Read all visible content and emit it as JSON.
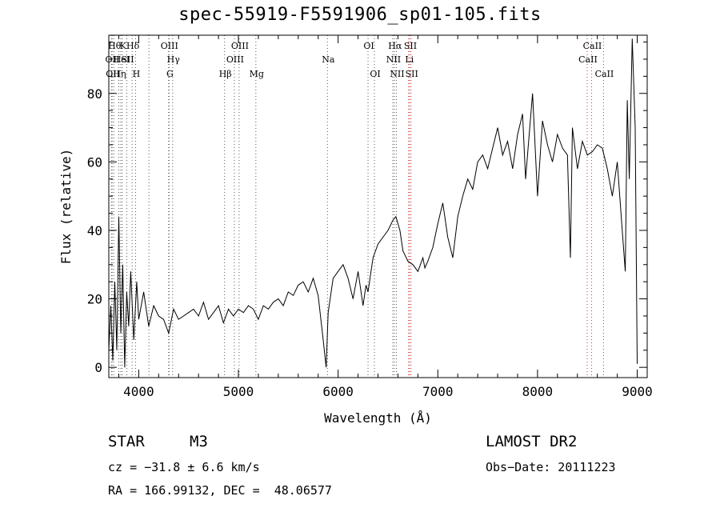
{
  "chart_data": {
    "type": "line",
    "title": "spec-55919-F5591906_sp01-105.fits",
    "xlabel": "Wavelength (Å)",
    "ylabel": "Flux (relative)",
    "xlim": [
      3700,
      9100
    ],
    "ylim": [
      -3,
      97
    ],
    "xticks": [
      4000,
      5000,
      6000,
      7000,
      8000,
      9000
    ],
    "yticks": [
      0,
      20,
      40,
      60,
      80
    ],
    "grid": false,
    "legend": "none",
    "series": [
      {
        "x": [
          3700,
          3720,
          3740,
          3760,
          3780,
          3800,
          3820,
          3840,
          3860,
          3880,
          3900,
          3920,
          3950,
          3980,
          4000,
          4050,
          4100,
          4150,
          4200,
          4250,
          4300,
          4350,
          4400,
          4450,
          4500,
          4550,
          4600,
          4650,
          4700,
          4750,
          4800,
          4850,
          4900,
          4950,
          5000,
          5050,
          5100,
          5150,
          5200,
          5250,
          5300,
          5350,
          5400,
          5450,
          5500,
          5550,
          5600,
          5650,
          5700,
          5750,
          5800,
          5850,
          5880,
          5900,
          5920,
          5950,
          6000,
          6050,
          6100,
          6150,
          6200,
          6250,
          6280,
          6300,
          6320,
          6350,
          6400,
          6450,
          6500,
          6550,
          6580,
          6600,
          6620,
          6650,
          6700,
          6750,
          6800,
          6850,
          6870,
          6900,
          6950,
          7000,
          7050,
          7100,
          7150,
          7200,
          7250,
          7300,
          7350,
          7400,
          7450,
          7500,
          7550,
          7600,
          7650,
          7700,
          7750,
          7800,
          7850,
          7880,
          7900,
          7950,
          8000,
          8050,
          8100,
          8150,
          8200,
          8250,
          8300,
          8330,
          8350,
          8400,
          8450,
          8500,
          8550,
          8600,
          8650,
          8700,
          8750,
          8800,
          8850,
          8880,
          8900,
          8920,
          8950,
          8980,
          9000
        ],
        "values": [
          5,
          18,
          2,
          25,
          5,
          44,
          10,
          30,
          0,
          22,
          12,
          28,
          8,
          25,
          14,
          22,
          12,
          18,
          15,
          14,
          10,
          17,
          14,
          15,
          16,
          17,
          15,
          19,
          14,
          16,
          18,
          13,
          17,
          15,
          17,
          16,
          18,
          17,
          14,
          18,
          17,
          19,
          20,
          18,
          22,
          21,
          24,
          25,
          22,
          26,
          21,
          8,
          0,
          16,
          20,
          26,
          28,
          30,
          26,
          20,
          28,
          18,
          24,
          22,
          26,
          32,
          36,
          38,
          40,
          43,
          44,
          42,
          40,
          34,
          31,
          30,
          28,
          32,
          29,
          31,
          35,
          42,
          48,
          38,
          32,
          44,
          50,
          55,
          52,
          60,
          62,
          58,
          64,
          70,
          62,
          66,
          58,
          68,
          74,
          55,
          62,
          80,
          50,
          72,
          65,
          60,
          68,
          64,
          62,
          32,
          70,
          58,
          66,
          62,
          63,
          65,
          64,
          58,
          50,
          60,
          40,
          28,
          78,
          55,
          96,
          70,
          1
        ]
      }
    ],
    "lines": [
      {
        "x": 3750,
        "color": "#555555",
        "label": "Hθ",
        "row": 0
      },
      {
        "x": 3727,
        "color": "#555555",
        "label": "OII",
        "row": 1
      },
      {
        "x": 3733,
        "color": "#555555",
        "label": "OII",
        "row": 2
      },
      {
        "x": 3835,
        "color": "#555555",
        "label": "K",
        "row": 0
      },
      {
        "x": 3820,
        "color": "#555555",
        "label": "HeI",
        "row": 1
      },
      {
        "x": 3800,
        "color": "#555555",
        "label": "Hη",
        "row": 2
      },
      {
        "x": 3934,
        "color": "#555555",
        "label": "Hδ",
        "row": 0
      },
      {
        "x": 3880,
        "color": "#555555",
        "label": "SII",
        "row": 1
      },
      {
        "x": 3968,
        "color": "#555555",
        "label": "H",
        "row": 2
      },
      {
        "x": 4102,
        "color": "#555555",
        "label": "",
        "row": -1
      },
      {
        "x": 4300,
        "color": "#555555",
        "label": "OIII",
        "row": 0
      },
      {
        "x": 4340,
        "color": "#555555",
        "label": "Hγ",
        "row": 1
      },
      {
        "x": 4305,
        "color": "#555555",
        "label": "G",
        "row": 2
      },
      {
        "x": 4861,
        "color": "#555555",
        "label": "Hβ",
        "row": 2
      },
      {
        "x": 4959,
        "color": "#555555",
        "label": "OIII",
        "row": 1
      },
      {
        "x": 5007,
        "color": "#555555",
        "label": "OIII",
        "row": 0
      },
      {
        "x": 5175,
        "color": "#555555",
        "label": "Mg",
        "row": 2
      },
      {
        "x": 5893,
        "color": "#555555",
        "label": "Na",
        "row": 1
      },
      {
        "x": 6300,
        "color": "#555555",
        "label": "OI",
        "row": 0
      },
      {
        "x": 6364,
        "color": "#555555",
        "label": "OI",
        "row": 2
      },
      {
        "x": 6563,
        "color": "#555555",
        "label": "Hα",
        "row": 0
      },
      {
        "x": 6548,
        "color": "#555555",
        "label": "NII",
        "row": 1
      },
      {
        "x": 6584,
        "color": "#555555",
        "label": "NII",
        "row": 2
      },
      {
        "x": 6707,
        "color": "#cc3333",
        "label": "Li",
        "row": 1
      },
      {
        "x": 6717,
        "color": "#cc3333",
        "label": "SII",
        "row": 0
      },
      {
        "x": 6731,
        "color": "#cc3333",
        "label": "SII",
        "row": 2
      },
      {
        "x": 8498,
        "color": "#cc3333",
        "label": "CaII",
        "row": 1
      },
      {
        "x": 8542,
        "color": "#cc3333",
        "label": "CaII",
        "row": 0
      },
      {
        "x": 8662,
        "color": "#cc3333",
        "label": "CaII",
        "row": 2
      }
    ]
  },
  "info": {
    "class_label": "STAR",
    "subclass": "M3",
    "survey": "LAMOST DR2",
    "cz": "cz = −31.8 ± 6.6 km/s",
    "obs_date": "Obs−Date: 20111223",
    "coords": "RA = 166.99132, DEC =  48.06577"
  }
}
